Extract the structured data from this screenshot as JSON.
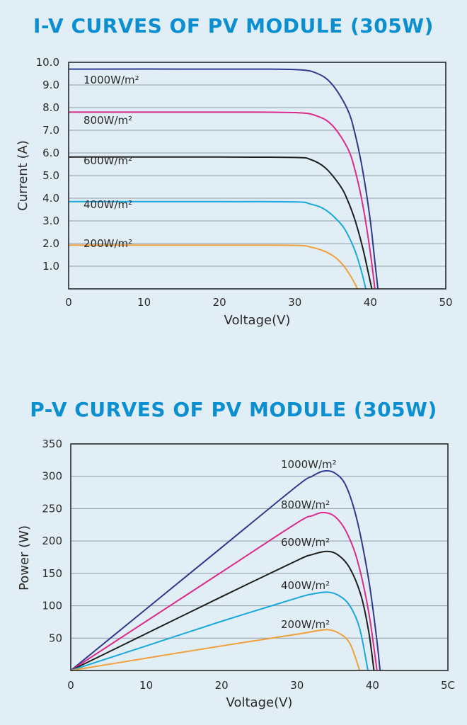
{
  "colors": {
    "background": "#e2eef5",
    "title": "#0b8fd0",
    "series_1000": "#2e3a8c",
    "series_800": "#d92b8a",
    "series_600": "#1e1e1e",
    "series_400": "#19a8dc",
    "series_200": "#f0a03a"
  },
  "chart_data": [
    {
      "type": "line",
      "title": "I-V CURVES OF PV MODULE (305W)",
      "xlabel": "Voltage(V)",
      "ylabel": "Current (A)",
      "xlim": [
        0,
        50
      ],
      "ylim": [
        0,
        10
      ],
      "xticks": [
        "0",
        "10",
        "20",
        "30",
        "40",
        "50"
      ],
      "yticks": [
        "1.0",
        "2.0",
        "3.0",
        "4.0",
        "5.0",
        "6.0",
        "7.0",
        "8.0",
        "9.0",
        "10.0"
      ],
      "grid": true,
      "series": [
        {
          "name": "1000W/m²",
          "color": "#2e3a8c",
          "x": [
            0,
            20,
            30,
            33,
            35,
            37,
            38,
            39,
            40,
            40.6,
            41
          ],
          "y": [
            9.7,
            9.7,
            9.68,
            9.5,
            9.0,
            7.9,
            6.8,
            5.2,
            3.0,
            1.2,
            0
          ]
        },
        {
          "name": "800W/m²",
          "color": "#d92b8a",
          "x": [
            0,
            20,
            30,
            33,
            35,
            37,
            38,
            39,
            40,
            40.6
          ],
          "y": [
            7.8,
            7.8,
            7.78,
            7.62,
            7.2,
            6.2,
            5.2,
            3.7,
            1.6,
            0
          ]
        },
        {
          "name": "600W/m²",
          "color": "#1e1e1e",
          "x": [
            0,
            20,
            30,
            32,
            34,
            36,
            37,
            38,
            39,
            39.8,
            40.2
          ],
          "y": [
            5.82,
            5.82,
            5.8,
            5.72,
            5.35,
            4.55,
            3.9,
            3.0,
            1.8,
            0.6,
            0
          ]
        },
        {
          "name": "400W/m²",
          "color": "#19a8dc",
          "x": [
            0,
            20,
            30,
            32,
            34,
            36,
            37,
            38,
            38.8,
            39.4
          ],
          "y": [
            3.85,
            3.85,
            3.84,
            3.75,
            3.5,
            2.9,
            2.4,
            1.65,
            0.8,
            0
          ]
        },
        {
          "name": "200W/m²",
          "color": "#f0a03a",
          "x": [
            0,
            20,
            30,
            32,
            34,
            35.5,
            36.5,
            37.5,
            38.3
          ],
          "y": [
            1.93,
            1.93,
            1.92,
            1.85,
            1.65,
            1.35,
            1.0,
            0.5,
            0
          ]
        }
      ]
    },
    {
      "type": "line",
      "title": "P-V CURVES OF PV MODULE (305W)",
      "xlabel": "Voltage(V)",
      "ylabel": "Power (W)",
      "xlim": [
        0,
        50
      ],
      "ylim": [
        0,
        350
      ],
      "xticks": [
        "0",
        "10",
        "20",
        "30",
        "40",
        "5C"
      ],
      "yticks": [
        "50",
        "100",
        "150",
        "200",
        "250",
        "300",
        "350"
      ],
      "grid": true,
      "series": [
        {
          "name": "1000W/m²",
          "color": "#2e3a8c",
          "x": [
            0,
            10,
            20,
            30,
            32,
            33.5,
            35,
            36.5,
            38,
            39.5,
            40.5,
            41
          ],
          "y": [
            0,
            95,
            190,
            285,
            300,
            308,
            305,
            285,
            230,
            140,
            55,
            0
          ]
        },
        {
          "name": "800W/m²",
          "color": "#d92b8a",
          "x": [
            0,
            10,
            20,
            30,
            32,
            33.5,
            35,
            36.5,
            38,
            39.5,
            40.6
          ],
          "y": [
            0,
            76,
            152,
            228,
            239,
            244,
            238,
            215,
            170,
            90,
            0
          ]
        },
        {
          "name": "600W/m²",
          "color": "#1e1e1e",
          "x": [
            0,
            10,
            20,
            30,
            32,
            34,
            35.5,
            37,
            38.5,
            39.5,
            40.2
          ],
          "y": [
            0,
            57,
            114,
            170,
            179,
            184,
            178,
            158,
            115,
            60,
            0
          ]
        },
        {
          "name": "400W/m²",
          "color": "#19a8dc",
          "x": [
            0,
            10,
            20,
            30,
            32,
            34,
            35.5,
            37,
            38.3,
            39.4
          ],
          "y": [
            0,
            38,
            76,
            112,
            118,
            121,
            116,
            100,
            65,
            0
          ]
        },
        {
          "name": "200W/m²",
          "color": "#f0a03a",
          "x": [
            0,
            10,
            20,
            30,
            32,
            34,
            35.5,
            37,
            38.3
          ],
          "y": [
            0,
            19,
            38,
            56,
            60,
            63,
            58,
            42,
            0
          ]
        }
      ]
    }
  ]
}
